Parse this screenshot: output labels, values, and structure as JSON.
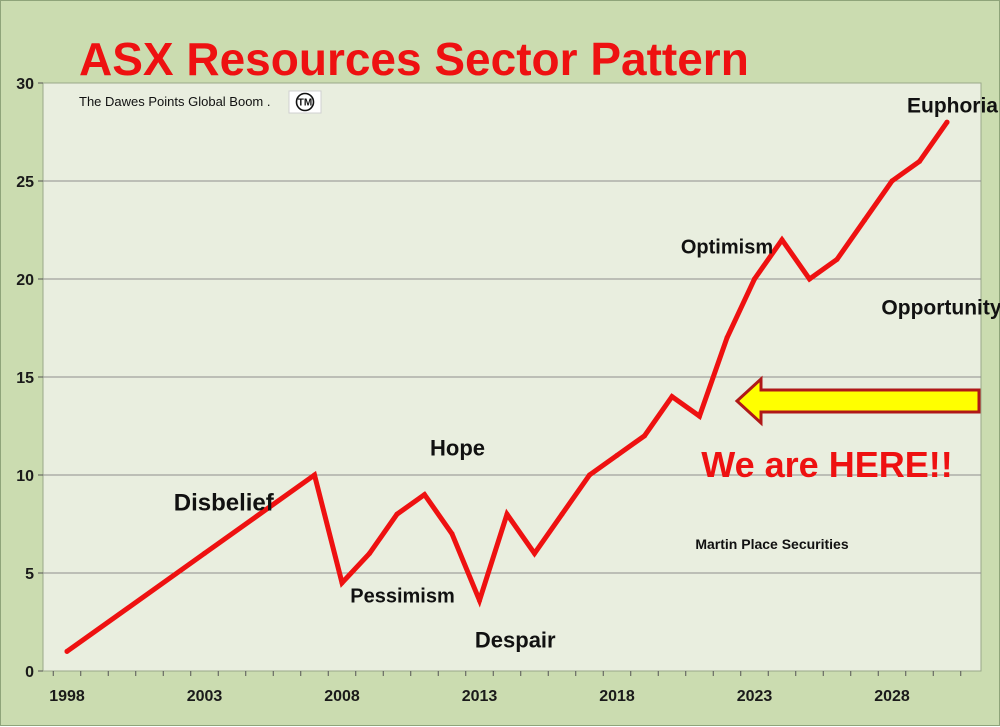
{
  "title": "ASX  Resources Sector Pattern",
  "subtitle": "The Dawes Points Global Boom .",
  "trademark": "TM",
  "credit": "Martin Place Securities",
  "callout": "We are HERE!!",
  "colors": {
    "line": "#ee1111",
    "title": "#ee1111",
    "background": "#cbdcb0",
    "plot_area": "#e9eedf",
    "arrow_fill": "#ffff00",
    "arrow_stroke": "#b01818"
  },
  "chart_data": {
    "type": "line",
    "title": "ASX  Resources Sector Pattern",
    "xlabel": "",
    "ylabel": "",
    "xlim": [
      1998,
      2032
    ],
    "ylim": [
      0,
      30
    ],
    "yticks": [
      0,
      5,
      10,
      15,
      20,
      25,
      30
    ],
    "xticks": [
      1998,
      2003,
      2008,
      2013,
      2018,
      2023,
      2028
    ],
    "grid": "horizontal",
    "series": [
      {
        "x": [
          1998,
          2003,
          2007,
          2008,
          2009,
          2010,
          2011,
          2012,
          2013,
          2014,
          2015,
          2016,
          2017,
          2018,
          2019,
          2020,
          2021,
          2022,
          2023,
          2024,
          2025,
          2026,
          2027,
          2028,
          2029,
          2030
        ],
        "values": [
          1,
          6,
          10,
          4.5,
          6,
          8,
          9,
          7,
          3.6,
          8,
          6,
          8,
          10,
          11,
          12,
          14,
          13,
          17,
          20,
          22,
          20,
          21,
          23,
          25,
          26,
          28
        ]
      }
    ],
    "annotations": [
      {
        "text": "Disbelief",
        "x": 2003.7,
        "y": 8.2,
        "size": 24
      },
      {
        "text": "Pessimism",
        "x": 2010.2,
        "y": 3.5,
        "size": 20
      },
      {
        "text": "Hope",
        "x": 2012.2,
        "y": 11.0,
        "size": 22
      },
      {
        "text": "Despair",
        "x": 2014.3,
        "y": 1.2,
        "size": 22,
        "color": "#ee1111"
      },
      {
        "text": "Optimism",
        "x": 2022.0,
        "y": 21.3,
        "size": 20
      },
      {
        "text": "Euphoria",
        "x": 2030.2,
        "y": 28.5,
        "size": 21
      },
      {
        "text": "Opportunity",
        "x": 2029.8,
        "y": 18.2,
        "size": 21
      }
    ]
  }
}
